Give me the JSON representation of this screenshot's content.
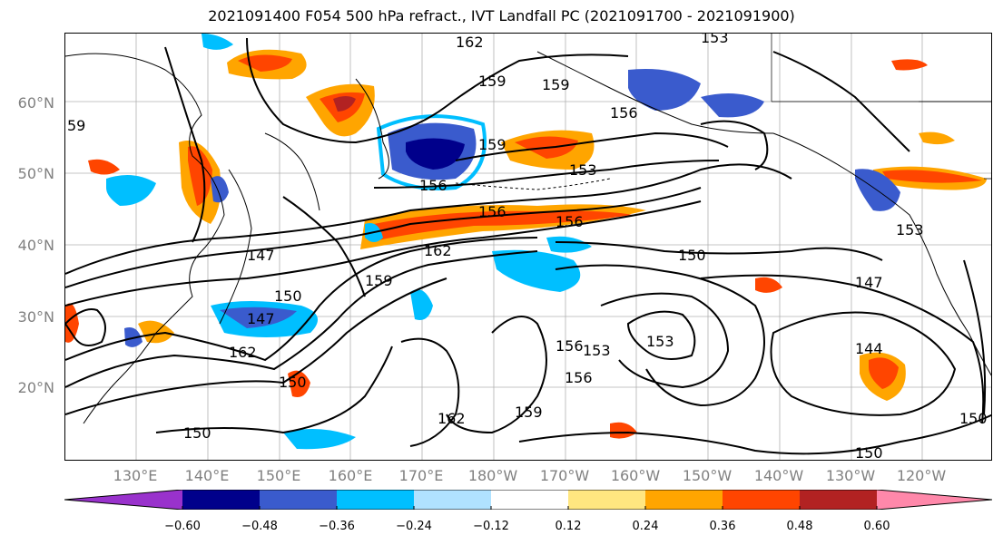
{
  "title": "2021091400 F054 500 hPa refract., IVT Landfall PC (2021091700 - 2021091900)",
  "lat_labels": [
    "60°N",
    "50°N",
    "40°N",
    "30°N",
    "20°N"
  ],
  "lon_labels": [
    "130°E",
    "140°E",
    "150°E",
    "160°E",
    "170°E",
    "180°W",
    "170°W",
    "160°W",
    "150°W",
    "140°W",
    "130°W",
    "120°W"
  ],
  "contour_labels": [
    "162",
    "159",
    "159",
    "159",
    "156",
    "156",
    "156",
    "156",
    "153",
    "150",
    "150",
    "147",
    "147",
    "144",
    "162",
    "162",
    "159",
    "150",
    "153",
    "153",
    "156",
    "156",
    "159",
    "150",
    "150",
    "162",
    "59",
    "153",
    "150",
    "153",
    "147"
  ],
  "colorbar": {
    "colors": [
      "#9932cc",
      "#00008b",
      "#3a5bcd",
      "#00bfff",
      "#b0e2ff",
      "#ffffff",
      "#ffe680",
      "#ffa500",
      "#ff4500",
      "#b22222",
      "#ff88aa"
    ],
    "tick_labels": [
      "−0.60",
      "−0.48",
      "−0.36",
      "−0.24",
      "−0.12",
      "0.12",
      "0.24",
      "0.36",
      "0.48",
      "0.60"
    ]
  }
}
